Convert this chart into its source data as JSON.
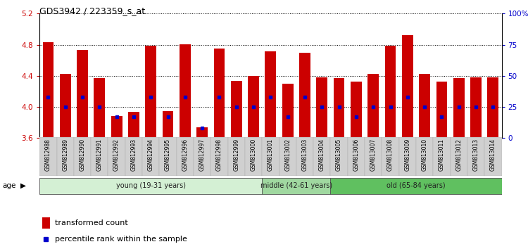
{
  "title": "GDS3942 / 223359_s_at",
  "samples": [
    "GSM812988",
    "GSM812989",
    "GSM812990",
    "GSM812991",
    "GSM812992",
    "GSM812993",
    "GSM812994",
    "GSM812995",
    "GSM812996",
    "GSM812997",
    "GSM812998",
    "GSM812999",
    "GSM813000",
    "GSM813001",
    "GSM813002",
    "GSM813003",
    "GSM813004",
    "GSM813005",
    "GSM813006",
    "GSM813007",
    "GSM813008",
    "GSM813009",
    "GSM813010",
    "GSM813011",
    "GSM813012",
    "GSM813013",
    "GSM813014"
  ],
  "transformed_count": [
    4.83,
    4.43,
    4.73,
    4.37,
    3.88,
    3.94,
    4.79,
    3.95,
    4.81,
    3.74,
    4.75,
    4.34,
    4.4,
    4.72,
    4.3,
    4.7,
    4.38,
    4.37,
    4.33,
    4.43,
    4.79,
    4.92,
    4.43,
    4.33,
    4.37,
    4.38,
    4.38
  ],
  "percentile_rank": [
    33,
    25,
    33,
    25,
    17,
    17,
    33,
    17,
    33,
    8,
    33,
    25,
    25,
    33,
    17,
    33,
    25,
    25,
    17,
    25,
    25,
    33,
    25,
    17,
    25,
    25,
    25
  ],
  "groups": [
    {
      "label": "young (19-31 years)",
      "start": 0,
      "end": 13,
      "color": "#d4f0d4"
    },
    {
      "label": "middle (42-61 years)",
      "start": 13,
      "end": 17,
      "color": "#a0d8a0"
    },
    {
      "label": "old (65-84 years)",
      "start": 17,
      "end": 27,
      "color": "#60c060"
    }
  ],
  "ylim_left": [
    3.6,
    5.2
  ],
  "ylim_right": [
    0,
    100
  ],
  "right_ticks": [
    0,
    25,
    50,
    75,
    100
  ],
  "right_tick_labels": [
    "0",
    "25",
    "50",
    "75",
    "100%"
  ],
  "left_ticks": [
    3.6,
    4.0,
    4.4,
    4.8,
    5.2
  ],
  "bar_color": "#cc0000",
  "percentile_color": "#0000cc",
  "bg_color": "#f0f0f0",
  "plot_bg": "#ffffff",
  "grid_color": "#000000",
  "title_color": "#000000",
  "left_tick_color": "#cc0000",
  "right_tick_color": "#0000cc",
  "xtick_bg": "#d0d0d0"
}
